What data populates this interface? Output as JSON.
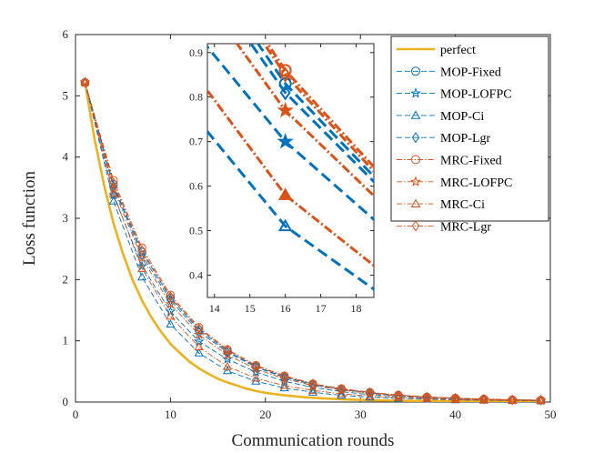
{
  "chart_data": {
    "type": "line",
    "title": "",
    "xlabel": "Communication rounds",
    "ylabel": "Loss function",
    "xlim": [
      0,
      50
    ],
    "ylim": [
      0,
      6
    ],
    "xticks": [
      0,
      10,
      20,
      30,
      40,
      50
    ],
    "yticks": [
      0,
      1,
      2,
      3,
      4,
      5,
      6
    ],
    "grid": false,
    "legend_position": "top-right",
    "colors": {
      "perfect": "#EDB120",
      "mop": "#0072BD",
      "mrc": "#D95319",
      "axis": "#262626"
    },
    "x": [
      1,
      4,
      7,
      10,
      13,
      16,
      19,
      22,
      25,
      28,
      31,
      34,
      37,
      40,
      43,
      46,
      49
    ],
    "perfect_line": {
      "name": "perfect",
      "x": [
        1,
        2,
        3,
        4,
        5,
        6,
        7,
        8,
        9,
        10,
        11,
        12,
        13,
        14,
        15,
        16,
        17,
        18,
        19,
        20,
        22,
        24,
        26,
        28,
        30,
        33,
        36,
        40,
        45,
        49
      ],
      "values": [
        5.22,
        4.3,
        3.55,
        2.92,
        2.42,
        2.0,
        1.66,
        1.38,
        1.15,
        0.95,
        0.8,
        0.66,
        0.55,
        0.46,
        0.38,
        0.32,
        0.27,
        0.22,
        0.18,
        0.15,
        0.11,
        0.08,
        0.06,
        0.045,
        0.035,
        0.025,
        0.018,
        0.012,
        0.008,
        0.006
      ]
    },
    "series": [
      {
        "name": "MOP-Fixed",
        "marker": "circle",
        "family": "mop",
        "values": [
          5.22,
          3.55,
          2.45,
          1.7,
          1.18,
          0.83,
          0.58,
          0.41,
          0.29,
          0.21,
          0.15,
          0.11,
          0.08,
          0.06,
          0.045,
          0.035,
          0.03
        ]
      },
      {
        "name": "MOP-LOFPC",
        "marker": "star",
        "family": "mop",
        "values": [
          5.22,
          3.38,
          2.22,
          1.48,
          0.99,
          0.7,
          0.49,
          0.34,
          0.24,
          0.17,
          0.12,
          0.09,
          0.065,
          0.05,
          0.04,
          0.032,
          0.028
        ]
      },
      {
        "name": "MOP-Ci",
        "marker": "triangle",
        "family": "mop",
        "values": [
          5.22,
          3.28,
          2.04,
          1.27,
          0.8,
          0.51,
          0.34,
          0.23,
          0.16,
          0.11,
          0.08,
          0.06,
          0.045,
          0.035,
          0.03,
          0.025,
          0.02
        ]
      },
      {
        "name": "MOP-Lgr",
        "marker": "diamond",
        "family": "mop",
        "values": [
          5.22,
          3.52,
          2.4,
          1.66,
          1.15,
          0.81,
          0.57,
          0.4,
          0.285,
          0.205,
          0.148,
          0.108,
          0.08,
          0.06,
          0.045,
          0.035,
          0.03
        ]
      },
      {
        "name": "MRC-Fixed",
        "marker": "circle",
        "family": "mrc",
        "values": [
          5.22,
          3.62,
          2.52,
          1.75,
          1.22,
          0.86,
          0.6,
          0.43,
          0.3,
          0.22,
          0.16,
          0.115,
          0.085,
          0.065,
          0.05,
          0.038,
          0.032
        ]
      },
      {
        "name": "MRC-LOFPC",
        "marker": "star",
        "family": "mrc",
        "values": [
          5.22,
          3.48,
          2.35,
          1.6,
          1.1,
          0.77,
          0.54,
          0.38,
          0.27,
          0.195,
          0.14,
          0.1,
          0.075,
          0.057,
          0.043,
          0.034,
          0.028
        ]
      },
      {
        "name": "MRC-Ci",
        "marker": "triangle",
        "family": "mrc",
        "values": [
          5.22,
          3.4,
          2.18,
          1.4,
          0.9,
          0.58,
          0.39,
          0.27,
          0.19,
          0.135,
          0.097,
          0.07,
          0.053,
          0.04,
          0.032,
          0.026,
          0.022
        ]
      },
      {
        "name": "MRC-Lgr",
        "marker": "diamond",
        "family": "mrc",
        "values": [
          5.22,
          3.58,
          2.48,
          1.72,
          1.2,
          0.85,
          0.59,
          0.42,
          0.295,
          0.215,
          0.155,
          0.112,
          0.083,
          0.063,
          0.048,
          0.037,
          0.031
        ]
      }
    ],
    "inset": {
      "xlim": [
        13.8,
        18.5
      ],
      "ylim": [
        0.35,
        0.92
      ],
      "xticks": [
        14,
        15,
        16,
        17,
        18
      ],
      "yticks": [
        0.4,
        0.5,
        0.6,
        0.7,
        0.8,
        0.9
      ],
      "marker_x": 16
    }
  }
}
